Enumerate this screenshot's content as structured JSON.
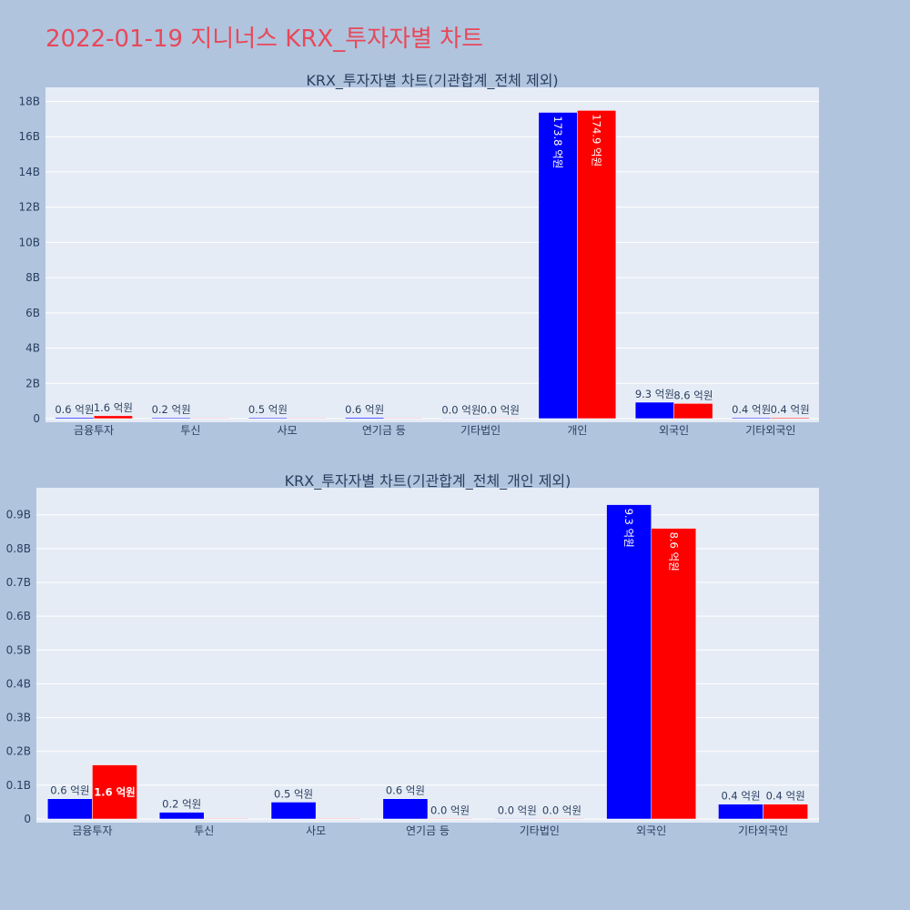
{
  "title": "2022-01-19 지니너스 KRX_투자자별 차트",
  "colors": {
    "buy": "#0000ff",
    "sell": "#ff0000",
    "background": "#b0c4de",
    "plot_background": "#e5ecf6",
    "title": "#e8485a"
  },
  "chart_data": [
    {
      "type": "bar",
      "title": "KRX_투자자별 차트(기관합계_전체 제외)",
      "categories": [
        "금융투자",
        "투신",
        "사모",
        "연기금 등",
        "기타법인",
        "개인",
        "외국인",
        "기타외국인"
      ],
      "series": [
        {
          "values": [
            0.06,
            0.02,
            0.05,
            0.06,
            0.0,
            17.38,
            0.93,
            0.04
          ],
          "labels": [
            "0.6 억원",
            "0.2 억원",
            "0.5 억원",
            "0.6 억원",
            "0.0 억원",
            "173.8 억원",
            "9.3 억원",
            "0.4 억원"
          ]
        },
        {
          "values": [
            0.16,
            0,
            0,
            0,
            0.0,
            17.49,
            0.86,
            0.04
          ],
          "labels": [
            "1.6 억원",
            "",
            "",
            "",
            "0.0 억원",
            "174.9 억원",
            "8.6 억원",
            "0.4 억원"
          ]
        }
      ],
      "yticks": [
        0,
        2,
        4,
        6,
        8,
        10,
        12,
        14,
        16,
        18
      ],
      "ytick_labels": [
        "0",
        "2B",
        "4B",
        "6B",
        "8B",
        "10B",
        "12B",
        "14B",
        "16B",
        "18B"
      ],
      "ylim": [
        0,
        18.8
      ],
      "grid": true
    },
    {
      "type": "bar",
      "title": "KRX_투자자별 차트(기관합계_전체_개인 제외)",
      "categories": [
        "금융투자",
        "투신",
        "사모",
        "연기금 등",
        "기타법인",
        "외국인",
        "기타외국인"
      ],
      "series": [
        {
          "values": [
            0.06,
            0.02,
            0.05,
            0.06,
            0.0,
            0.93,
            0.044
          ],
          "labels": [
            "0.6 억원",
            "0.2 억원",
            "0.5 억원",
            "0.6 억원",
            "0.0 억원",
            "9.3 억원",
            "0.4 억원"
          ]
        },
        {
          "values": [
            0.16,
            0,
            0,
            0.0,
            0.0,
            0.86,
            0.044
          ],
          "labels": [
            "1.6 억원",
            "",
            "",
            "0.0 억원",
            "0.0 억원",
            "8.6 억원",
            "0.4 억원"
          ]
        }
      ],
      "yticks": [
        0,
        0.1,
        0.2,
        0.3,
        0.4,
        0.5,
        0.6,
        0.7,
        0.8,
        0.9
      ],
      "ytick_labels": [
        "0",
        "0.1B",
        "0.2B",
        "0.3B",
        "0.4B",
        "0.5B",
        "0.6B",
        "0.7B",
        "0.8B",
        "0.9B"
      ],
      "ylim": [
        0,
        0.98
      ],
      "grid": true
    }
  ]
}
